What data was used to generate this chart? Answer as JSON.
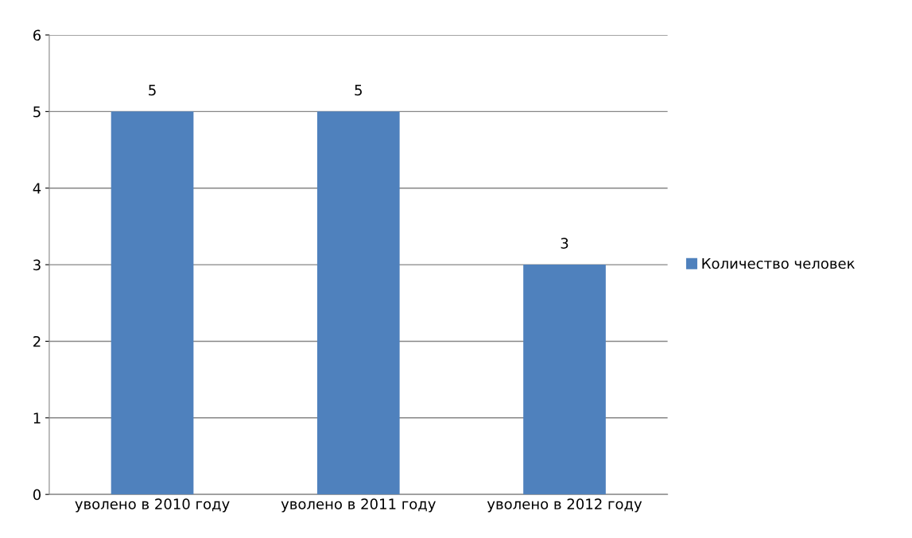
{
  "chart_data": {
    "type": "bar",
    "categories": [
      "уволено в 2010 году",
      "уволено в 2011 году",
      "уволено в 2012 году"
    ],
    "series": [
      {
        "name": "Количество человек",
        "color": "#4f81bd",
        "values": [
          5,
          5,
          3
        ]
      }
    ],
    "ylim": [
      0,
      6
    ],
    "yticks": [
      0,
      1,
      2,
      3,
      4,
      5,
      6
    ],
    "grid": "y",
    "legend": "right",
    "data_labels": true
  }
}
